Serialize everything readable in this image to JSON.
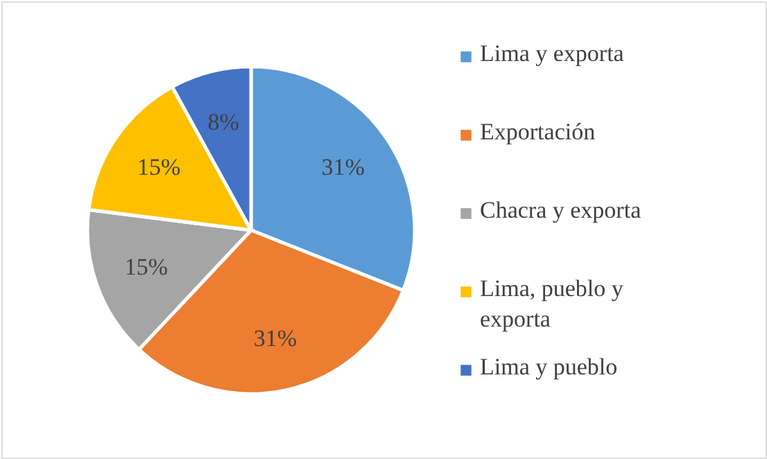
{
  "chart_data": {
    "type": "pie",
    "categories": [
      "Lima y exporta",
      "Exportación",
      "Chacra y exporta",
      "Lima, pueblo y exporta",
      "Lima y pueblo"
    ],
    "values": [
      31,
      31,
      15,
      15,
      8
    ],
    "colors": [
      "#5b9bd5",
      "#ed7d31",
      "#a5a5a5",
      "#ffc000",
      "#4472c4"
    ],
    "value_labels": [
      "31%",
      "31%",
      "15%",
      "15%",
      "8%"
    ],
    "legend": "right"
  }
}
